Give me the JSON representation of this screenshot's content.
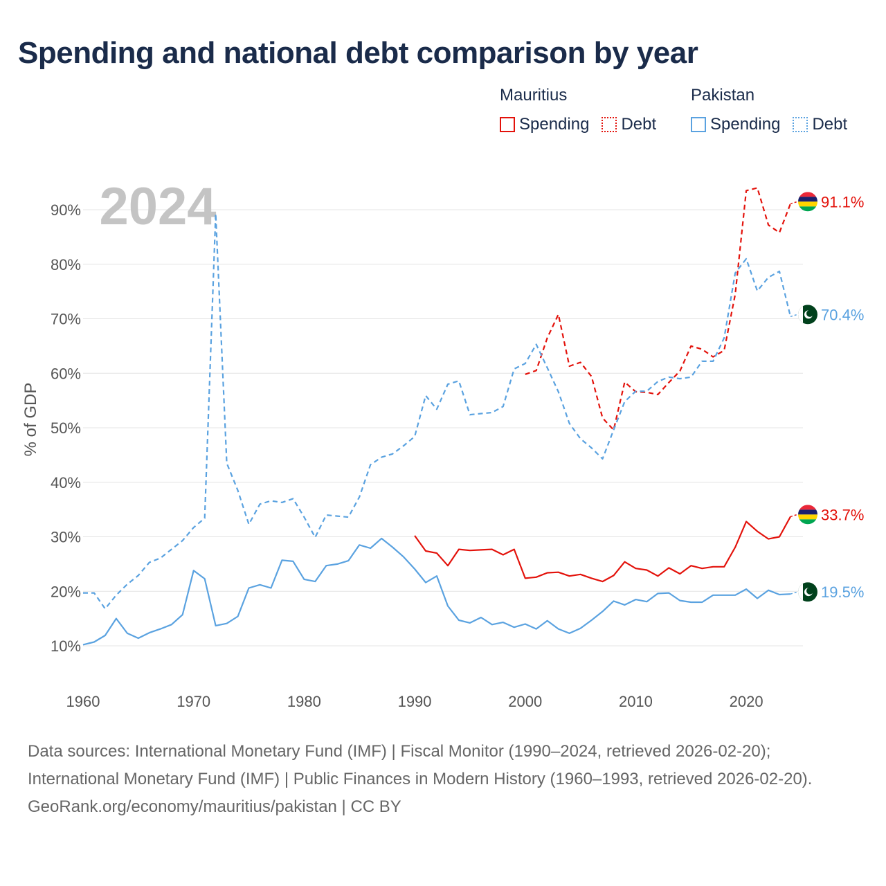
{
  "title": "Spending and national debt comparison by year",
  "legend": {
    "groups": [
      {
        "country": "Mauritius",
        "color": "#e3120b",
        "items": [
          {
            "label": "Spending",
            "style": "solid"
          },
          {
            "label": "Debt",
            "style": "dotted"
          }
        ]
      },
      {
        "country": "Pakistan",
        "color": "#5aa2e0",
        "items": [
          {
            "label": "Spending",
            "style": "solid"
          },
          {
            "label": "Debt",
            "style": "dotted"
          }
        ]
      }
    ]
  },
  "year_watermark": "2024",
  "chart_data": {
    "type": "line",
    "title": "Spending and national debt comparison by year",
    "ylabel": "% of GDP",
    "xlabel": "",
    "xlim": [
      1960,
      2025
    ],
    "ylim": [
      0,
      95
    ],
    "x_ticks": [
      1960,
      1970,
      1980,
      1990,
      2000,
      2010,
      2020
    ],
    "y_ticks": [
      10,
      20,
      30,
      40,
      50,
      60,
      70,
      80,
      90
    ],
    "y_tick_labels": [
      "10%",
      "20%",
      "30%",
      "40%",
      "50%",
      "60%",
      "70%",
      "80%",
      "90%"
    ],
    "grid": true,
    "series": [
      {
        "name": "Mauritius Debt",
        "country": "Mauritius",
        "measure": "Debt",
        "color": "#e3120b",
        "dash": "dashed",
        "end_label": "91.1%",
        "years": [
          2000,
          2001,
          2002,
          2003,
          2004,
          2005,
          2006,
          2007,
          2008,
          2009,
          2010,
          2011,
          2012,
          2013,
          2014,
          2015,
          2016,
          2017,
          2018,
          2019,
          2020,
          2021,
          2022,
          2023,
          2024
        ],
        "values": [
          59.8,
          60.5,
          66.5,
          70.8,
          61.3,
          62.0,
          59.4,
          51.8,
          49.6,
          58.4,
          56.6,
          56.5,
          56.1,
          58.3,
          60.4,
          65.0,
          64.4,
          63.0,
          64.2,
          74.5,
          93.5,
          94.0,
          87.2,
          85.8,
          91.1
        ]
      },
      {
        "name": "Pakistan Debt",
        "country": "Pakistan",
        "measure": "Debt",
        "color": "#5aa2e0",
        "dash": "dashed",
        "end_label": "70.4%",
        "years": [
          1960,
          1961,
          1962,
          1963,
          1964,
          1965,
          1966,
          1967,
          1968,
          1969,
          1970,
          1971,
          1972,
          1973,
          1974,
          1975,
          1976,
          1977,
          1978,
          1979,
          1980,
          1981,
          1982,
          1983,
          1984,
          1985,
          1986,
          1987,
          1988,
          1989,
          1990,
          1991,
          1992,
          1993,
          1994,
          1995,
          1996,
          1997,
          1998,
          1999,
          2000,
          2001,
          2002,
          2003,
          2004,
          2005,
          2006,
          2007,
          2008,
          2009,
          2010,
          2011,
          2012,
          2013,
          2014,
          2015,
          2016,
          2017,
          2018,
          2019,
          2020,
          2021,
          2022,
          2023,
          2024
        ],
        "values": [
          19.7,
          19.7,
          16.8,
          19.3,
          21.3,
          22.9,
          25.3,
          26.1,
          27.7,
          29.3,
          31.7,
          33.4,
          89.3,
          43.5,
          38.5,
          32.3,
          36.0,
          36.6,
          36.3,
          37.0,
          33.6,
          29.9,
          34.0,
          33.8,
          33.6,
          37.3,
          43.2,
          44.6,
          45.2,
          46.7,
          48.4,
          55.9,
          53.4,
          58.0,
          58.6,
          52.4,
          52.6,
          52.8,
          53.9,
          60.8,
          61.8,
          65.3,
          61.0,
          56.6,
          50.8,
          48.0,
          46.3,
          44.3,
          49.6,
          54.8,
          56.7,
          56.7,
          58.5,
          59.3,
          59.0,
          59.3,
          62.2,
          62.2,
          66.5,
          78.4,
          81.0,
          75.1,
          77.6,
          78.7,
          70.4
        ]
      },
      {
        "name": "Mauritius Spending",
        "country": "Mauritius",
        "measure": "Spending",
        "color": "#e3120b",
        "dash": "solid",
        "end_label": "33.7%",
        "years": [
          1990,
          1991,
          1992,
          1993,
          1994,
          1995,
          1996,
          1997,
          1998,
          1999,
          2000,
          2001,
          2002,
          2003,
          2004,
          2005,
          2006,
          2007,
          2008,
          2009,
          2010,
          2011,
          2012,
          2013,
          2014,
          2015,
          2016,
          2017,
          2018,
          2019,
          2020,
          2021,
          2022,
          2023,
          2024
        ],
        "values": [
          30.2,
          27.4,
          27.0,
          24.7,
          27.7,
          27.5,
          27.6,
          27.7,
          26.7,
          27.7,
          22.4,
          22.6,
          23.4,
          23.5,
          22.8,
          23.1,
          22.4,
          21.8,
          22.9,
          25.4,
          24.2,
          23.9,
          22.8,
          24.3,
          23.2,
          24.7,
          24.2,
          24.5,
          24.5,
          28.1,
          32.8,
          31.0,
          29.6,
          30.0,
          33.7
        ]
      },
      {
        "name": "Pakistan Spending",
        "country": "Pakistan",
        "measure": "Spending",
        "color": "#5aa2e0",
        "dash": "solid",
        "end_label": "19.5%",
        "years": [
          1960,
          1961,
          1962,
          1963,
          1964,
          1965,
          1966,
          1967,
          1968,
          1969,
          1970,
          1971,
          1972,
          1973,
          1974,
          1975,
          1976,
          1977,
          1978,
          1979,
          1980,
          1981,
          1982,
          1983,
          1984,
          1985,
          1986,
          1987,
          1988,
          1989,
          1990,
          1991,
          1992,
          1993,
          1994,
          1995,
          1996,
          1997,
          1998,
          1999,
          2000,
          2001,
          2002,
          2003,
          2004,
          2005,
          2006,
          2007,
          2008,
          2009,
          2010,
          2011,
          2012,
          2013,
          2014,
          2015,
          2016,
          2017,
          2018,
          2019,
          2020,
          2021,
          2022,
          2023,
          2024
        ],
        "values": [
          10.2,
          10.7,
          11.9,
          15.0,
          12.3,
          11.4,
          12.4,
          13.1,
          13.9,
          15.7,
          23.8,
          22.3,
          13.7,
          14.1,
          15.4,
          20.6,
          21.2,
          20.6,
          25.7,
          25.5,
          22.2,
          21.8,
          24.7,
          25.0,
          25.6,
          28.5,
          27.9,
          29.7,
          28.1,
          26.3,
          24.1,
          21.6,
          22.8,
          17.3,
          14.7,
          14.2,
          15.2,
          13.9,
          14.3,
          13.4,
          14.0,
          13.1,
          14.6,
          13.1,
          12.3,
          13.2,
          14.7,
          16.3,
          18.2,
          17.5,
          18.5,
          18.1,
          19.6,
          19.7,
          18.3,
          18.0,
          18.0,
          19.3,
          19.3,
          19.3,
          20.4,
          18.7,
          20.2,
          19.4,
          19.5
        ]
      }
    ]
  },
  "footer": {
    "sources": "Data sources: International Monetary Fund (IMF) | Fiscal Monitor (1990–2024, retrieved 2026-02-20); International Monetary Fund (IMF) | Public Finances in Modern History (1960–1993, retrieved 2026-02-20).",
    "credit": "GeoRank.org/economy/mauritius/pakistan | CC BY"
  }
}
